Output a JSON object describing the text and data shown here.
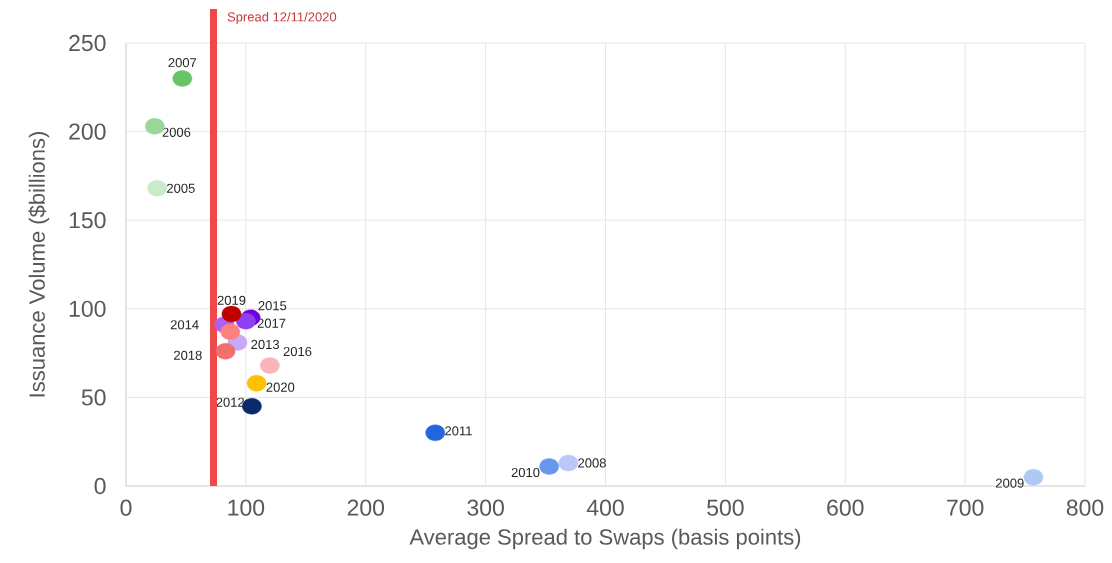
{
  "chart_data": {
    "type": "scatter",
    "xlabel": "Average Spread to Swaps (basis points)",
    "ylabel": "Issuance Volume ($billions)",
    "xlim": [
      0,
      800
    ],
    "xticks": [
      0,
      100,
      200,
      300,
      400,
      500,
      600,
      700,
      800
    ],
    "ylim": [
      0,
      250
    ],
    "yticks": [
      0,
      50,
      100,
      150,
      200,
      250
    ],
    "grid": true,
    "ref_lines": [
      {
        "axis": "x",
        "value": 73,
        "label": "Spread 12/11/2020",
        "color": "#f04848"
      }
    ],
    "series": [
      {
        "name": "2005",
        "color": "#c9ebc9",
        "x": [
          26
        ],
        "values": [
          168
        ]
      },
      {
        "name": "2006",
        "color": "#9ad69a",
        "x": [
          24
        ],
        "values": [
          203
        ]
      },
      {
        "name": "2007",
        "color": "#66c466",
        "x": [
          47
        ],
        "values": [
          230
        ]
      },
      {
        "name": "2008",
        "color": "#b8c8f8",
        "x": [
          369
        ],
        "values": [
          13
        ]
      },
      {
        "name": "2009",
        "color": "#b0c8f4",
        "x": [
          757
        ],
        "values": [
          5
        ]
      },
      {
        "name": "2010",
        "color": "#6699ee",
        "x": [
          353
        ],
        "values": [
          11
        ]
      },
      {
        "name": "2011",
        "color": "#2266e0",
        "x": [
          258
        ],
        "values": [
          30
        ]
      },
      {
        "name": "2012",
        "color": "#0a2a6e",
        "x": [
          105
        ],
        "values": [
          45
        ]
      },
      {
        "name": "2013",
        "color": "#c8a8f8",
        "x": [
          93
        ],
        "values": [
          81
        ]
      },
      {
        "name": "2014",
        "color": "#b060f0",
        "x": [
          82
        ],
        "values": [
          91
        ]
      },
      {
        "name": "2015",
        "color": "#7000e0",
        "x": [
          104
        ],
        "values": [
          95
        ]
      },
      {
        "name": "2016",
        "color": "#f8b4b8",
        "x": [
          120
        ],
        "values": [
          68
        ]
      },
      {
        "name": "2017",
        "color": "#9040f0",
        "x": [
          100
        ],
        "values": [
          93
        ]
      },
      {
        "name": "2018",
        "color": "#f07070",
        "x": [
          83
        ],
        "values": [
          76
        ]
      },
      {
        "name": "2019",
        "color": "#c00000",
        "x": [
          88
        ],
        "values": [
          97
        ]
      },
      {
        "name": "2020",
        "color": "#ffc000",
        "x": [
          109
        ],
        "values": [
          58
        ]
      },
      {
        "color": "#ff8080",
        "x": [
          87
        ],
        "values": [
          87
        ]
      }
    ]
  }
}
